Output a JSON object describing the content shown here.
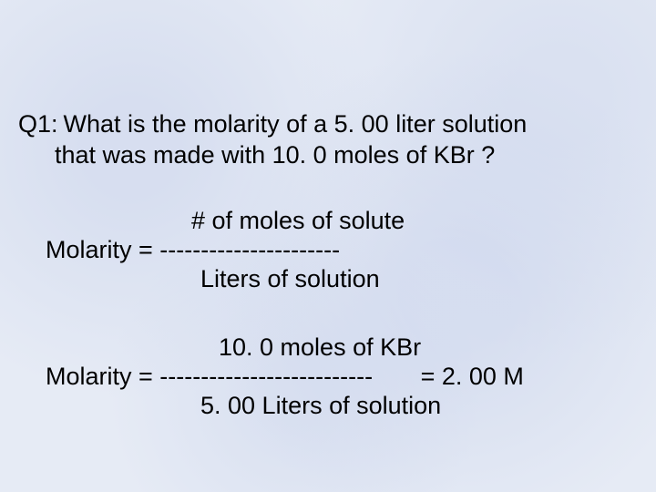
{
  "background_color": "#e6ebf5",
  "text_color": "#000000",
  "font_family": "Arial",
  "font_size_pt": 20,
  "question": {
    "label": "Q1:",
    "line1": "What is the molarity of a 5. 00 liter solution",
    "line2": "that was made with 10. 0 moles of  KBr ?"
  },
  "formula": {
    "numerator": "# of moles of solute",
    "lhs": "Molarity = ",
    "dashes": "----------------------",
    "denominator": "Liters of solution"
  },
  "calculation": {
    "numerator": "10. 0 moles of KBr",
    "lhs": "Molarity = ",
    "dashes": "--------------------------",
    "result_spacer": "       ",
    "result": "= 2. 00 M",
    "denominator": "5. 00 Liters of solution"
  }
}
